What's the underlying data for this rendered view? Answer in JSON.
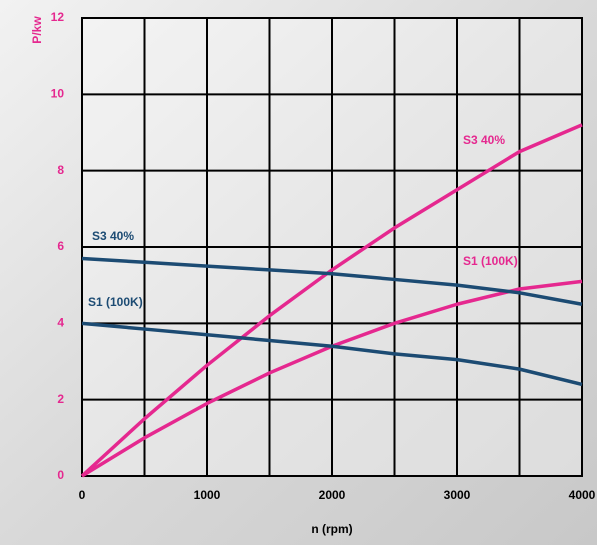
{
  "chart_data": {
    "type": "line",
    "ylabel": "P/kw",
    "xlabel": "n (rpm)",
    "x": [
      0,
      500,
      1000,
      1500,
      2000,
      2500,
      3000,
      3500,
      4000
    ],
    "series": [
      {
        "name": "S3 40%",
        "color": "#e5288f",
        "values": [
          0,
          1.5,
          2.9,
          4.2,
          5.4,
          6.5,
          7.5,
          8.5,
          9.2
        ]
      },
      {
        "name": "S1 (100K)",
        "color": "#e5288f",
        "values": [
          0,
          1.0,
          1.9,
          2.7,
          3.4,
          4.0,
          4.5,
          4.9,
          5.1
        ]
      },
      {
        "name": "S3 40%",
        "color": "#1c4b73",
        "values": [
          5.7,
          5.6,
          5.5,
          5.4,
          5.3,
          5.15,
          5.0,
          4.8,
          4.5
        ]
      },
      {
        "name": "S1 (100K)",
        "color": "#1c4b73",
        "values": [
          4.0,
          3.85,
          3.7,
          3.55,
          3.4,
          3.2,
          3.05,
          2.8,
          2.4
        ]
      }
    ],
    "xlim": [
      0,
      4000
    ],
    "xticks": [
      0,
      1000,
      2000,
      3000,
      4000
    ],
    "xgrid": [
      0,
      500,
      1000,
      1500,
      2000,
      2500,
      3000,
      3500,
      4000
    ],
    "ylim": [
      0,
      12
    ],
    "yticks": [
      0,
      2,
      4,
      6,
      8,
      10,
      12
    ],
    "grid": true,
    "ytick_color": "#e5288f"
  }
}
